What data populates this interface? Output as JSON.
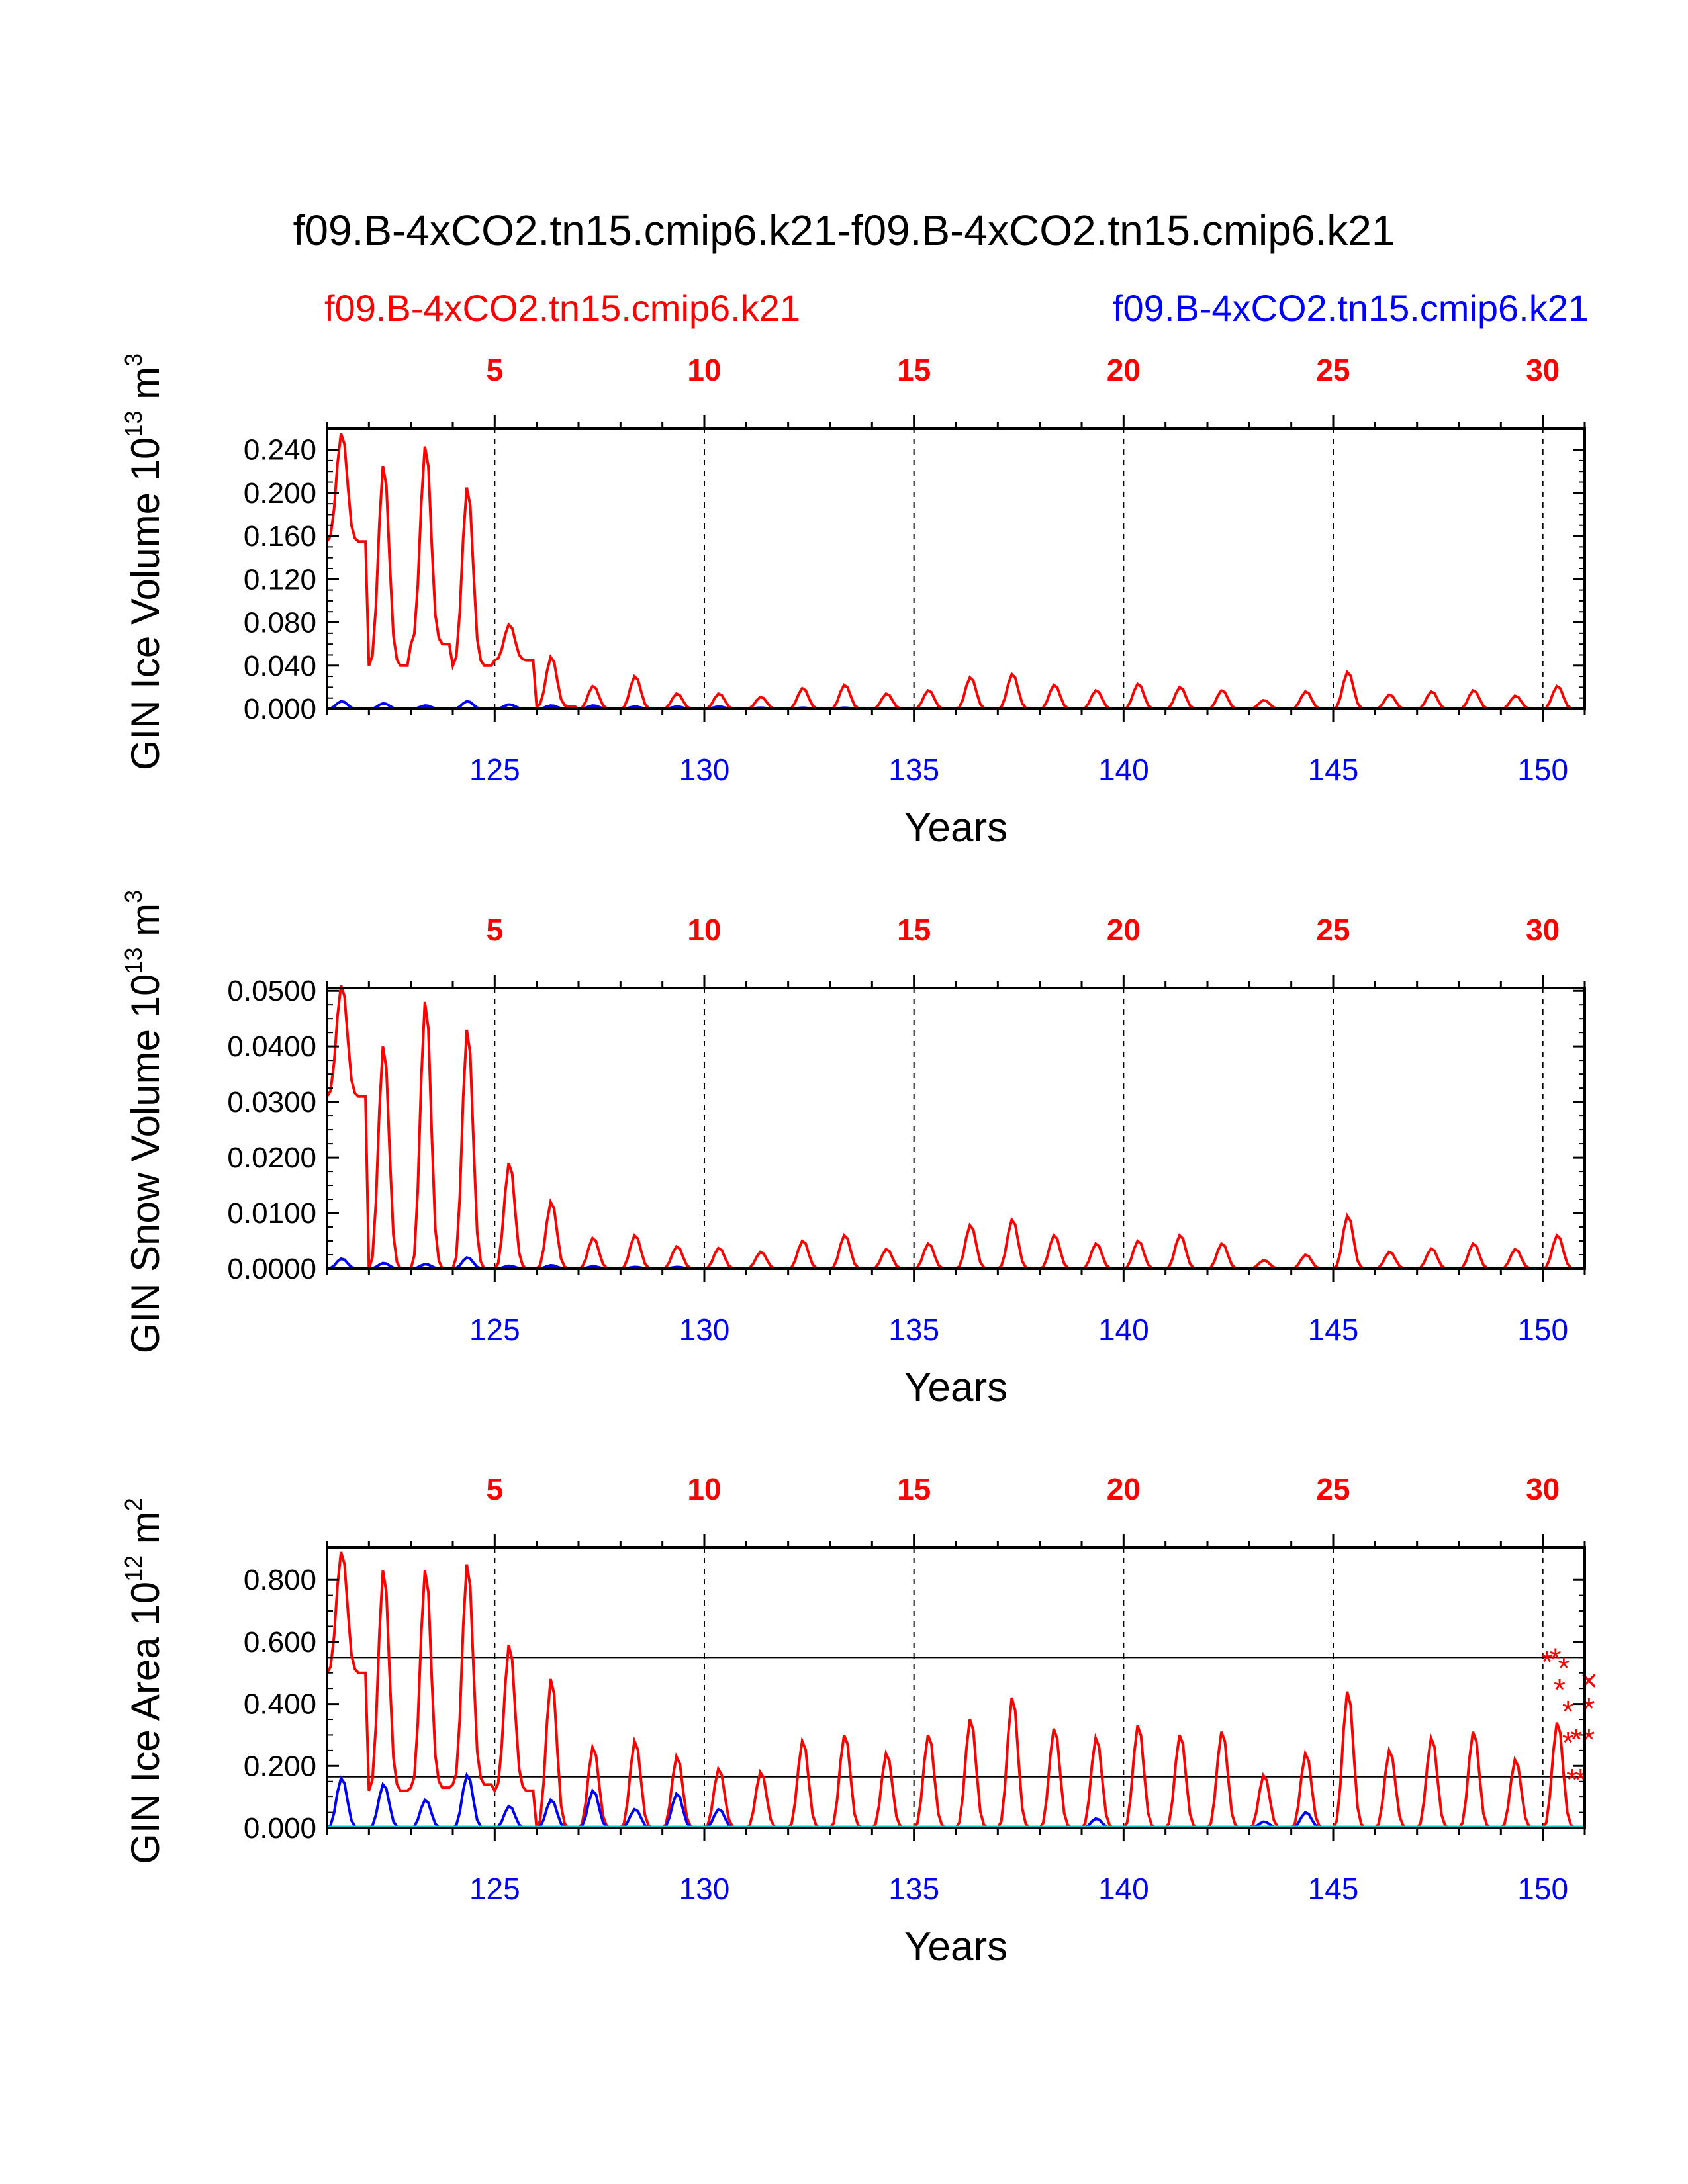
{
  "chart_data": {
    "type": "line",
    "title": "f09.B-4xCO2.tn15.cmip6.k21-f09.B-4xCO2.tn15.cmip6.k21",
    "case_left": "f09.B-4xCO2.tn15.cmip6.k21",
    "case_right": "f09.B-4xCO2.tn15.cmip6.k21",
    "colors": {
      "case_left": "#ff0000",
      "case_right": "#0000ff",
      "observations": "#00cccc",
      "frame": "#000000"
    },
    "x_top": {
      "range": [
        1,
        31
      ],
      "ticks": [
        5,
        10,
        15,
        20,
        25,
        30
      ]
    },
    "x_bottom": {
      "range": [
        121,
        151
      ],
      "ticks": [
        125,
        130,
        135,
        140,
        145,
        150
      ],
      "label": "Years"
    },
    "panels": [
      {
        "id": "ice-volume",
        "ylabel": "GIN Ice Volume 10",
        "yexp": "13",
        "yunit": " m",
        "yunit_exp": "3",
        "ylim": [
          0,
          0.26
        ],
        "yticks": [
          "0.000",
          "0.040",
          "0.080",
          "0.120",
          "0.160",
          "0.200",
          "0.240"
        ],
        "ytick_values": [
          0,
          0.04,
          0.08,
          0.12,
          0.16,
          0.2,
          0.24
        ],
        "series": [
          {
            "name": "f09.B-4xCO2.tn15.cmip6.k21",
            "color": "#ff0000",
            "min_profile": [
              0.155,
              0.04,
              0.06,
              0.04,
              0.045,
              0.002,
              0,
              0,
              0,
              0,
              0,
              0,
              0,
              0,
              0,
              0,
              0,
              0,
              0,
              0,
              0,
              0,
              0,
              0,
              0,
              0,
              0,
              0,
              0,
              0
            ],
            "annual_max": [
              0.255,
              0.225,
              0.243,
              0.205,
              0.078,
              0.048,
              0.021,
              0.03,
              0.014,
              0.014,
              0.011,
              0.019,
              0.022,
              0.014,
              0.017,
              0.029,
              0.032,
              0.022,
              0.017,
              0.023,
              0.02,
              0.017,
              0.008,
              0.016,
              0.034,
              0.013,
              0.016,
              0.017,
              0.012,
              0.021
            ]
          },
          {
            "name": "f09.B-4xCO2.tn15.cmip6.k21",
            "color": "#0000ff",
            "annual_max": [
              0.007,
              0.005,
              0.003,
              0.007,
              0.004,
              0.003,
              0.003,
              0.002,
              0.002,
              0.002,
              0.001,
              0.001,
              0.001,
              0,
              0,
              0,
              0,
              0,
              0,
              0,
              0,
              0,
              0,
              0,
              0,
              0,
              0,
              0,
              0,
              0
            ]
          }
        ],
        "obs_lines": []
      },
      {
        "id": "snow-volume",
        "ylabel": "GIN Snow Volume 10",
        "yexp": "13",
        "yunit": " m",
        "yunit_exp": "3",
        "ylim": [
          0,
          0.0505
        ],
        "yticks": [
          "0.0000",
          "0.0100",
          "0.0200",
          "0.0300",
          "0.0400",
          "0.0500"
        ],
        "ytick_values": [
          0,
          0.01,
          0.02,
          0.03,
          0.04,
          0.05
        ],
        "series": [
          {
            "name": "f09.B-4xCO2.tn15.cmip6.k21",
            "color": "#ff0000",
            "min_profile": [
              0.031,
              0,
              0,
              0,
              0,
              0,
              0,
              0,
              0,
              0,
              0,
              0,
              0,
              0,
              0,
              0,
              0,
              0,
              0,
              0,
              0,
              0,
              0,
              0,
              0,
              0,
              0,
              0,
              0,
              0
            ],
            "annual_max": [
              0.051,
              0.04,
              0.048,
              0.043,
              0.019,
              0.012,
              0.0055,
              0.006,
              0.004,
              0.0037,
              0.003,
              0.005,
              0.006,
              0.0035,
              0.0045,
              0.0078,
              0.0088,
              0.006,
              0.0045,
              0.005,
              0.006,
              0.0045,
              0.0015,
              0.0025,
              0.0095,
              0.003,
              0.0036,
              0.0045,
              0.0035,
              0.006
            ]
          },
          {
            "name": "f09.B-4xCO2.tn15.cmip6.k21",
            "color": "#0000ff",
            "annual_max": [
              0.0018,
              0.001,
              0.0008,
              0.002,
              0.0005,
              0.0006,
              0.0004,
              0.0003,
              0.0003,
              0,
              0,
              0,
              0,
              0,
              0,
              0,
              0,
              0,
              0,
              0,
              0,
              0,
              0,
              0,
              0,
              0,
              0,
              0,
              0,
              0
            ]
          }
        ],
        "obs_lines": []
      },
      {
        "id": "ice-area",
        "ylabel": "GIN Ice Area 10",
        "yexp": "12",
        "yunit": " m",
        "yunit_exp": "2",
        "ylim": [
          0,
          0.905
        ],
        "yticks": [
          "0.000",
          "0.200",
          "0.400",
          "0.600",
          "0.800"
        ],
        "ytick_values": [
          0,
          0.2,
          0.4,
          0.6,
          0.8
        ],
        "series": [
          {
            "name": "f09.B-4xCO2.tn15.cmip6.k21",
            "color": "#ff0000",
            "min_profile": [
              0.5,
              0.12,
              0.13,
              0.14,
              0.12,
              0,
              0,
              0,
              0,
              0,
              0,
              0,
              0,
              0,
              0,
              0,
              0,
              0,
              0,
              0,
              0,
              0,
              0,
              0,
              0,
              0,
              0,
              0,
              0,
              0
            ],
            "annual_max": [
              0.89,
              0.83,
              0.83,
              0.85,
              0.59,
              0.48,
              0.26,
              0.28,
              0.23,
              0.19,
              0.18,
              0.28,
              0.3,
              0.24,
              0.3,
              0.35,
              0.42,
              0.32,
              0.29,
              0.33,
              0.3,
              0.31,
              0.17,
              0.24,
              0.44,
              0.25,
              0.29,
              0.31,
              0.22,
              0.34
            ]
          },
          {
            "name": "f09.B-4xCO2.tn15.cmip6.k21",
            "color": "#0000ff",
            "annual_max": [
              0.16,
              0.14,
              0.09,
              0.17,
              0.07,
              0.09,
              0.12,
              0.06,
              0.11,
              0.06,
              0,
              0,
              0,
              0,
              0,
              0,
              0,
              0,
              0.03,
              0,
              0,
              0,
              0.02,
              0.05,
              0,
              0,
              0,
              0,
              0,
              0
            ]
          }
        ],
        "obs_lines": [
          0.55,
          0.165
        ],
        "obs_markers": [
          {
            "symbol": "*",
            "points": [
              [
                150.1,
                0.54
              ],
              [
                150.3,
                0.55
              ],
              [
                150.5,
                0.52
              ],
              [
                150.4,
                0.45
              ],
              [
                150.6,
                0.38
              ],
              [
                150.6,
                0.28
              ],
              [
                150.8,
                0.29
              ],
              [
                150.7,
                0.16
              ],
              [
                150.9,
                0.16
              ],
              [
                151.1,
                0.39
              ],
              [
                151.1,
                0.29
              ]
            ]
          },
          {
            "symbol": "x",
            "points": [
              [
                151.1,
                0.48
              ]
            ]
          }
        ]
      }
    ]
  }
}
